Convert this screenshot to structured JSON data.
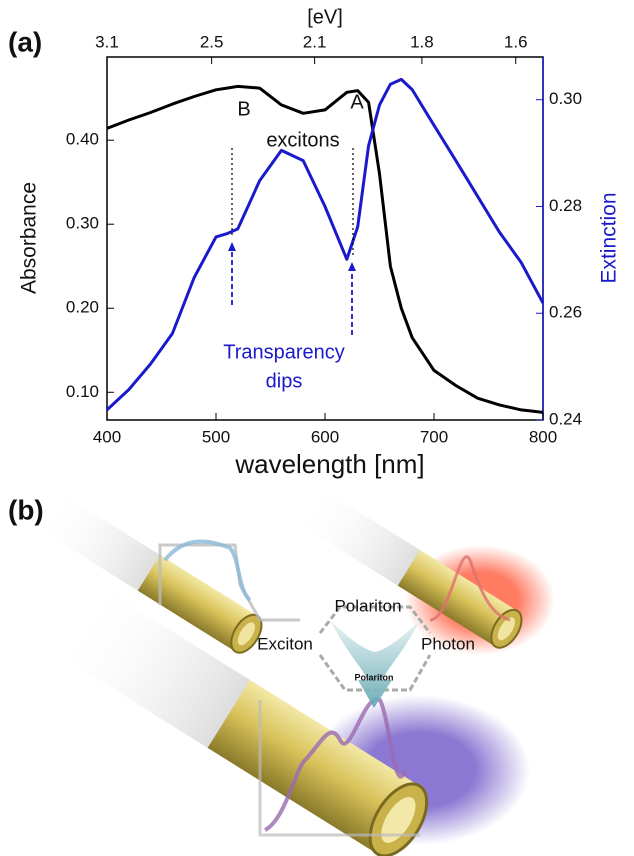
{
  "panel_labels": [
    "(a)",
    "(b)"
  ],
  "chart_data": {
    "type": "line",
    "xlabel": "wavelength [nm]",
    "ylabel": "Absorbance",
    "y2label": "Extinction",
    "x2label": "[eV]",
    "x": [
      400,
      420,
      440,
      460,
      480,
      500,
      510,
      520,
      540,
      560,
      580,
      600,
      620,
      630,
      640,
      650,
      660,
      670,
      680,
      700,
      720,
      740,
      760,
      780,
      800
    ],
    "series": [
      {
        "name": "Absorbance",
        "color": "#000000",
        "values": [
          0.414,
          0.424,
          0.433,
          0.443,
          0.452,
          0.46,
          0.462,
          0.464,
          0.462,
          0.442,
          0.432,
          0.436,
          0.457,
          0.459,
          0.445,
          0.36,
          0.25,
          0.2,
          0.165,
          0.126,
          0.108,
          0.093,
          0.085,
          0.079,
          0.076
        ]
      },
      {
        "name": "Extinction",
        "color": "#1a1acc",
        "axis": "y2",
        "values": [
          0.2419,
          0.2457,
          0.2505,
          0.2562,
          0.2667,
          0.2743,
          0.2749,
          0.2758,
          0.2848,
          0.2905,
          0.2886,
          0.28,
          0.2701,
          0.2762,
          0.2914,
          0.299,
          0.3029,
          0.3038,
          0.3019,
          0.2952,
          0.2886,
          0.2819,
          0.2752,
          0.2695,
          0.2619
        ]
      }
    ],
    "xlim": [
      400,
      800
    ],
    "xticks": [
      400,
      500,
      600,
      700,
      800
    ],
    "x2ticks": [
      3.1,
      2.5,
      2.1,
      1.8,
      1.6
    ],
    "x2scale": "reciprocal",
    "ylim": [
      0.067,
      0.499
    ],
    "yticks": [
      {
        "value": 0.1,
        "label": "0.10"
      },
      {
        "value": 0.2,
        "label": "0.20"
      },
      {
        "value": 0.3,
        "label": "0.30"
      },
      {
        "value": 0.4,
        "label": "0.40"
      }
    ],
    "y2lim": [
      0.24,
      0.308
    ],
    "y2ticks": [
      0.24,
      0.26,
      0.28,
      {
        "value": 0.3,
        "label": "0.30"
      }
    ],
    "annotations": [
      "B",
      "A",
      "excitons",
      "Transparency",
      "dips"
    ]
  },
  "illustration": {
    "labels": [
      "Polariton",
      "Exciton",
      "Photon",
      "Polariton"
    ]
  }
}
